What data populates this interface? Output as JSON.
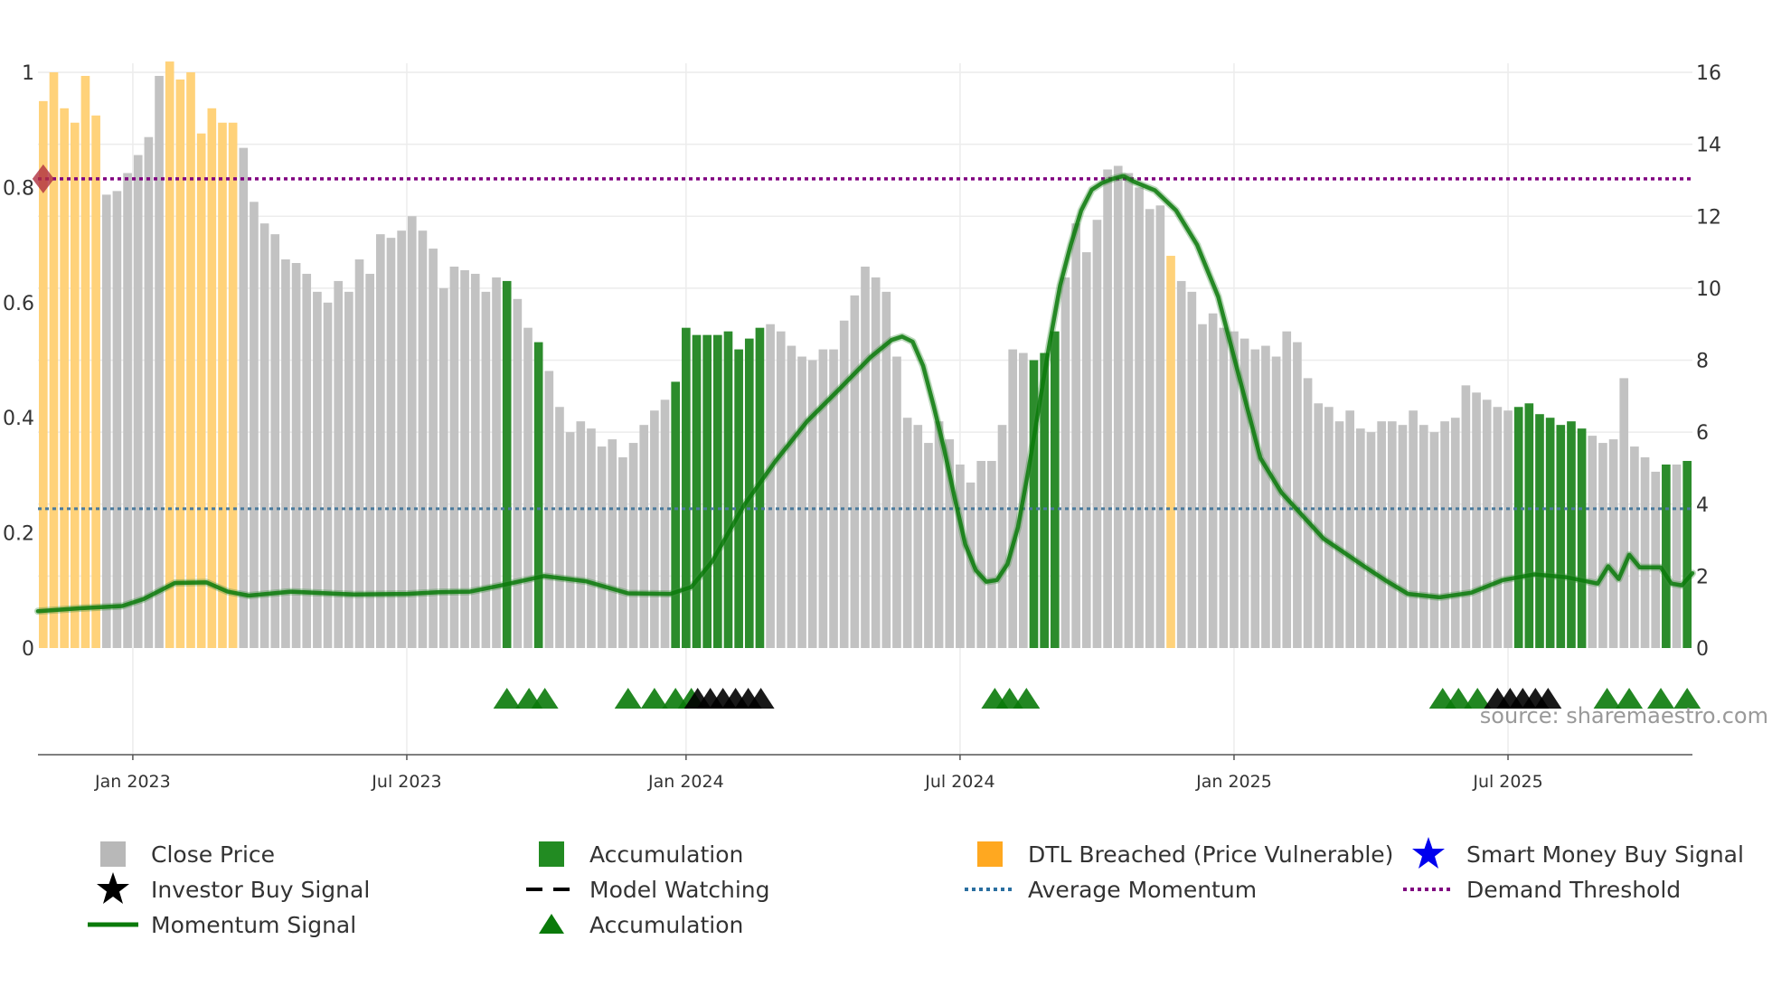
{
  "chart_data": {
    "type": "bar",
    "title": "",
    "source": "source: sharemaestro.com",
    "left_axis": {
      "ticks": [
        "0",
        "0.2",
        "0.4",
        "0.6",
        "0.8",
        "1"
      ],
      "ylim": [
        0,
        1
      ]
    },
    "right_axis": {
      "ticks": [
        "0",
        "2",
        "4",
        "6",
        "8",
        "10",
        "12",
        "14",
        "16"
      ],
      "ylim": [
        0,
        16
      ]
    },
    "x_labels": [
      "Jan 2023",
      "Jul 2023",
      "Jan 2024",
      "Jul 2024",
      "Jan 2025",
      "Jul 2025"
    ],
    "x_label_weeks": [
      9,
      35,
      61.5,
      87.5,
      113.5,
      139.5
    ],
    "weeks": 157,
    "prices": [
      15.2,
      16.0,
      15.0,
      14.6,
      15.9,
      14.8,
      12.6,
      12.7,
      13.2,
      13.7,
      14.2,
      15.9,
      16.3,
      15.8,
      16.0,
      14.3,
      15.0,
      14.6,
      14.6,
      13.9,
      12.4,
      11.8,
      11.5,
      10.8,
      10.7,
      10.4,
      9.9,
      9.6,
      10.2,
      9.9,
      10.8,
      10.4,
      11.5,
      11.4,
      11.6,
      12.0,
      11.6,
      11.1,
      10.0,
      10.6,
      10.5,
      10.4,
      9.9,
      10.3,
      10.2,
      9.7,
      8.9,
      8.5,
      7.7,
      6.7,
      6.0,
      6.3,
      6.1,
      5.6,
      5.8,
      5.3,
      5.7,
      6.2,
      6.6,
      6.9,
      7.4,
      8.9,
      8.7,
      8.7,
      8.7,
      8.8,
      8.3,
      8.6,
      8.9,
      9.0,
      8.8,
      8.4,
      8.1,
      8.0,
      8.3,
      8.3,
      9.1,
      9.8,
      10.6,
      10.3,
      9.9,
      8.1,
      6.4,
      6.2,
      5.7,
      6.3,
      5.8,
      5.1,
      4.6,
      5.2,
      5.2,
      6.2,
      8.3,
      8.2,
      8.0,
      8.2,
      8.8,
      10.3,
      11.8,
      11.0,
      11.9,
      13.3,
      13.4,
      13.2,
      12.8,
      12.2,
      12.3,
      10.9,
      10.2,
      9.9,
      9.0,
      9.3,
      8.9,
      8.8,
      8.6,
      8.3,
      8.4,
      8.1,
      8.8,
      8.5,
      7.5,
      6.8,
      6.7,
      6.3,
      6.6,
      6.1,
      6.0,
      6.3,
      6.3,
      6.2,
      6.6,
      6.2,
      6.0,
      6.3,
      6.4,
      7.3,
      7.1,
      6.9,
      6.7,
      6.6,
      6.7,
      6.8,
      6.5,
      6.4,
      6.2,
      6.3,
      6.1,
      5.9,
      5.7,
      5.8,
      7.5,
      5.6,
      5.3,
      4.9,
      5.1,
      5.1,
      5.2,
      5.4
    ],
    "bar_state": "DDDDDDGGGGGGDDDDDDDGGGGGGGGGGGGGGGGGGGGGGGGGAGGAGGGGGGGGGGGGAAAAAAAAAGGGGGGGGGGGGGGGGGGGGGGGGGAAAGGGGGGGGGGDGGGGGGGGGGGGGGGGGGGGGGGGGGGGGGGGAAAAAAAGGGGGGGAGAGGAGA",
    "momentum": [
      [
        0,
        0.064
      ],
      [
        4,
        0.069
      ],
      [
        8,
        0.073
      ],
      [
        10,
        0.085
      ],
      [
        13,
        0.113
      ],
      [
        16,
        0.114
      ],
      [
        18,
        0.098
      ],
      [
        20,
        0.091
      ],
      [
        24,
        0.098
      ],
      [
        30,
        0.093
      ],
      [
        35,
        0.094
      ],
      [
        38,
        0.097
      ],
      [
        41,
        0.098
      ],
      [
        44,
        0.109
      ],
      [
        48,
        0.125
      ],
      [
        52,
        0.116
      ],
      [
        56,
        0.095
      ],
      [
        60,
        0.094
      ],
      [
        62,
        0.106
      ],
      [
        64,
        0.151
      ],
      [
        67,
        0.248
      ],
      [
        70,
        0.325
      ],
      [
        73,
        0.394
      ],
      [
        76,
        0.449
      ],
      [
        79,
        0.505
      ],
      [
        81,
        0.535
      ],
      [
        82,
        0.541
      ],
      [
        83,
        0.532
      ],
      [
        84,
        0.49
      ],
      [
        85,
        0.42
      ],
      [
        86,
        0.345
      ],
      [
        87,
        0.26
      ],
      [
        88,
        0.18
      ],
      [
        89,
        0.135
      ],
      [
        90,
        0.115
      ],
      [
        91,
        0.118
      ],
      [
        92,
        0.146
      ],
      [
        93,
        0.21
      ],
      [
        94,
        0.31
      ],
      [
        95,
        0.42
      ],
      [
        96,
        0.53
      ],
      [
        97,
        0.63
      ],
      [
        98,
        0.7
      ],
      [
        99,
        0.76
      ],
      [
        100,
        0.796
      ],
      [
        101,
        0.808
      ],
      [
        102,
        0.815
      ],
      [
        103,
        0.82
      ],
      [
        104,
        0.81
      ],
      [
        106,
        0.795
      ],
      [
        108,
        0.76
      ],
      [
        110,
        0.7
      ],
      [
        112,
        0.61
      ],
      [
        114,
        0.47
      ],
      [
        116,
        0.33
      ],
      [
        118,
        0.27
      ],
      [
        120,
        0.23
      ],
      [
        122,
        0.19
      ],
      [
        124,
        0.165
      ],
      [
        126,
        0.14
      ],
      [
        128,
        0.116
      ],
      [
        130,
        0.094
      ],
      [
        133,
        0.088
      ],
      [
        136,
        0.096
      ],
      [
        139,
        0.118
      ],
      [
        142,
        0.128
      ],
      [
        145,
        0.123
      ],
      [
        148,
        0.112
      ],
      [
        149,
        0.142
      ],
      [
        150,
        0.12
      ],
      [
        151,
        0.162
      ],
      [
        152,
        0.14
      ],
      [
        153,
        0.14
      ],
      [
        154,
        0.14
      ],
      [
        155,
        0.112
      ],
      [
        156,
        0.109
      ],
      [
        157,
        0.13
      ]
    ],
    "demand_threshold": 0.815,
    "average_momentum": 0.242,
    "green_markers": [
      44.5,
      46.6,
      48.1,
      56,
      58.5,
      60.5,
      62,
      90.8,
      92.2,
      93.8,
      133.3,
      134.8,
      136.6,
      148.9,
      151,
      154,
      156.5
    ],
    "black_markers": [
      62.6,
      63.8,
      65,
      66.2,
      67.4,
      68.6,
      138.5,
      139.7,
      140.9,
      142.1,
      143.3
    ],
    "demand_marker_week": 0.5,
    "colors": {
      "price": "#c2c2c2",
      "accumulation": "#2c8c2c",
      "dtl": "#ffd27a",
      "momentum": "#0a7a0a",
      "avg_momentum": "#4a7a9c",
      "demand": "#800080",
      "investor": "#000000",
      "smart_money": "#0000ee"
    }
  },
  "legend": {
    "close_price": "Close Price",
    "accumulation_bar": "Accumulation",
    "dtl": "DTL Breached (Price Vulnerable)",
    "smart_money": "Smart Money Buy Signal",
    "investor_buy": "Investor Buy Signal",
    "model_watching": "Model Watching",
    "average_momentum": "Average Momentum",
    "demand_threshold": "Demand Threshold",
    "momentum_signal": "Momentum Signal",
    "accumulation_marker": "Accumulation"
  }
}
